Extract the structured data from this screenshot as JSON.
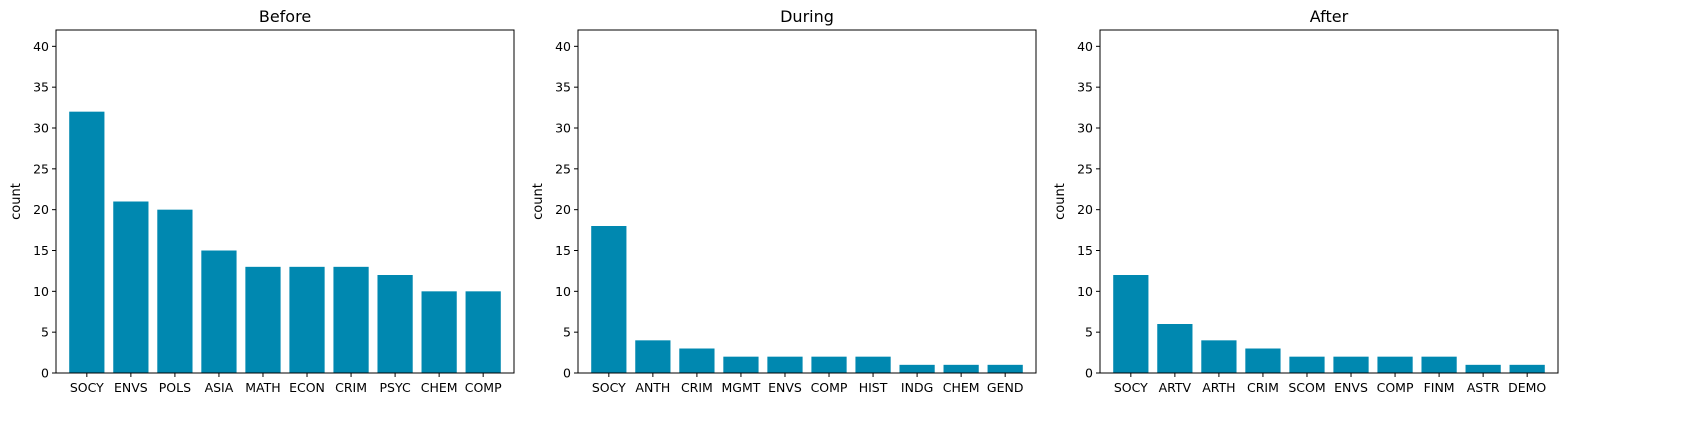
{
  "chart_data": [
    {
      "type": "bar",
      "title": "Before",
      "xlabel": "",
      "ylabel": "count",
      "ylim": [
        0,
        42
      ],
      "yticks": [
        "0",
        "5",
        "10",
        "15",
        "20",
        "25",
        "30",
        "35",
        "40"
      ],
      "grid": false,
      "categories": [
        "SOCY",
        "ENVS",
        "POLS",
        "ASIA",
        "MATH",
        "ECON",
        "CRIM",
        "PSYC",
        "CHEM",
        "COMP"
      ],
      "values": [
        32,
        21,
        20,
        15,
        13,
        13,
        13,
        12,
        10,
        10
      ]
    },
    {
      "type": "bar",
      "title": "During",
      "xlabel": "",
      "ylabel": "count",
      "ylim": [
        0,
        42
      ],
      "yticks": [
        "0",
        "5",
        "10",
        "15",
        "20",
        "25",
        "30",
        "35",
        "40"
      ],
      "grid": false,
      "categories": [
        "SOCY",
        "ANTH",
        "CRIM",
        "MGMT",
        "ENVS",
        "COMP",
        "HIST",
        "INDG",
        "CHEM",
        "GEND"
      ],
      "values": [
        18,
        4,
        3,
        2,
        2,
        2,
        2,
        1,
        1,
        1
      ]
    },
    {
      "type": "bar",
      "title": "After",
      "xlabel": "",
      "ylabel": "count",
      "ylim": [
        0,
        42
      ],
      "yticks": [
        "0",
        "5",
        "10",
        "15",
        "20",
        "25",
        "30",
        "35",
        "40"
      ],
      "grid": false,
      "categories": [
        "SOCY",
        "ARTV",
        "ARTH",
        "CRIM",
        "SCOM",
        "ENVS",
        "COMP",
        "FINM",
        "ASTR",
        "DEMO"
      ],
      "values": [
        12,
        6,
        4,
        3,
        2,
        2,
        2,
        2,
        1,
        1
      ]
    }
  ],
  "colors": {
    "bar": "#0088b0",
    "axis": "#000000"
  }
}
